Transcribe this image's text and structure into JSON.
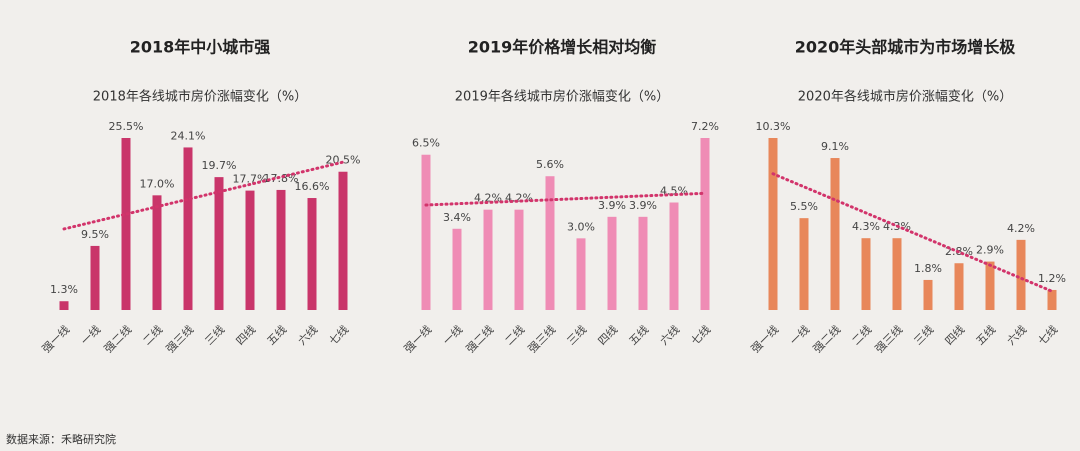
{
  "source": "数据来源：禾略研究院",
  "chart_data": [
    {
      "type": "bar",
      "title": "2018年中小城市强",
      "subtitle": "2018年各线城市房价涨幅变化（%）",
      "categories": [
        "强一线",
        "一线",
        "强二线",
        "二线",
        "强三线",
        "三线",
        "四线",
        "五线",
        "六线",
        "七线"
      ],
      "values": [
        1.3,
        9.5,
        25.5,
        17.0,
        24.1,
        19.7,
        17.7,
        17.8,
        16.6,
        20.5
      ],
      "value_labels": [
        "1.3%",
        "9.5%",
        "25.5%",
        "17.0%",
        "24.1%",
        "19.7%",
        "17.7%",
        "17.8%",
        "16.6%",
        "20.5%"
      ],
      "color": "#c9356a",
      "trendline": true,
      "trendline_color": "#d2346b"
    },
    {
      "type": "bar",
      "title": "2019年价格增长相对均衡",
      "subtitle": "2019年各线城市房价涨幅变化（%）",
      "categories": [
        "强一线",
        "一线",
        "强二线",
        "二线",
        "强三线",
        "三线",
        "四线",
        "五线",
        "六线",
        "七线"
      ],
      "values": [
        6.5,
        3.4,
        4.2,
        4.2,
        5.6,
        3.0,
        3.9,
        3.9,
        4.5,
        7.2
      ],
      "value_labels": [
        "6.5%",
        "3.4%",
        "4.2%",
        "4.2%",
        "5.6%",
        "3.0%",
        "3.9%",
        "3.9%",
        "4.5%",
        "7.2%"
      ],
      "color": "#ef8cb5",
      "trendline": true,
      "trendline_color": "#d2346b"
    },
    {
      "type": "bar",
      "title": "2020年头部城市为市场增长极",
      "subtitle": "2020年各线城市房价涨幅变化（%）",
      "categories": [
        "强一线",
        "一线",
        "强二线",
        "二线",
        "强三线",
        "三线",
        "四线",
        "五线",
        "六线",
        "七线"
      ],
      "values": [
        10.3,
        5.5,
        9.1,
        4.3,
        4.3,
        1.8,
        2.8,
        2.9,
        4.2,
        1.2
      ],
      "value_labels": [
        "10.3%",
        "5.5%",
        "9.1%",
        "4.3%",
        "4.3%",
        "1.8%",
        "2.8%",
        "2.9%",
        "4.2%",
        "1.2%"
      ],
      "color": "#e8875a",
      "trendline": true,
      "trendline_color": "#d2346b"
    }
  ]
}
